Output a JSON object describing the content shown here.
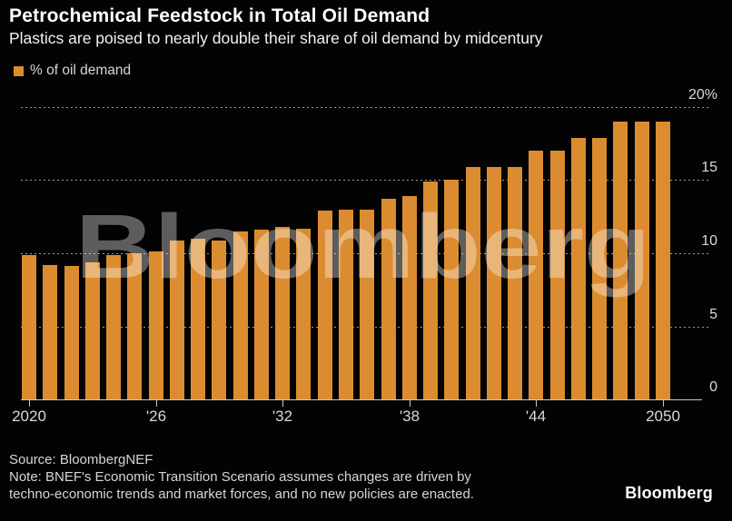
{
  "header": {
    "title": "Petrochemical Feedstock in Total Oil Demand",
    "subtitle": "Plastics are poised to nearly double their share of oil demand by midcentury"
  },
  "legend": {
    "label": "% of oil demand",
    "swatch_color": "#dc8c30"
  },
  "watermark": "Bloomberg",
  "chart_data": {
    "type": "bar",
    "title": "Petrochemical Feedstock in Total Oil Demand",
    "series_name": "% of oil demand",
    "xlabel": "",
    "ylabel": "% of oil demand",
    "ylim": [
      0,
      20
    ],
    "grid": "horizontal-dashed",
    "legend_position": "top-left",
    "bar_color": "#dc8c30",
    "x": [
      2020,
      2021,
      2022,
      2023,
      2024,
      2025,
      2026,
      2027,
      2028,
      2029,
      2030,
      2031,
      2032,
      2033,
      2034,
      2035,
      2036,
      2037,
      2038,
      2039,
      2040,
      2041,
      2042,
      2043,
      2044,
      2045,
      2046,
      2047,
      2048,
      2049,
      2050
    ],
    "values": [
      9.9,
      9.2,
      9.1,
      9.4,
      9.9,
      10.0,
      10.1,
      10.9,
      11.0,
      10.9,
      11.5,
      11.6,
      11.8,
      11.7,
      12.9,
      13.0,
      13.0,
      13.7,
      13.9,
      14.9,
      15.0,
      15.9,
      15.9,
      15.9,
      17.0,
      17.0,
      17.9,
      17.9,
      19.0,
      19.0,
      19.0
    ],
    "yticks": [
      {
        "value": 0,
        "label": "0"
      },
      {
        "value": 5,
        "label": "5"
      },
      {
        "value": 10,
        "label": "10"
      },
      {
        "value": 15,
        "label": "15"
      },
      {
        "value": 20,
        "label": "20%"
      }
    ],
    "xticks": [
      {
        "year": 2020,
        "label": "2020"
      },
      {
        "year": 2026,
        "label": "'26"
      },
      {
        "year": 2032,
        "label": "'32"
      },
      {
        "year": 2038,
        "label": "'38"
      },
      {
        "year": 2044,
        "label": "'44"
      },
      {
        "year": 2050,
        "label": "2050"
      }
    ]
  },
  "footer": {
    "source": "Source: BloombergNEF",
    "note_line1": "Note: BNEF's Economic Transition Scenario assumes changes are driven by",
    "note_line2": "techno-economic trends and market forces, and no new policies are enacted.",
    "logo": "Bloomberg"
  },
  "colors": {
    "background": "#030303",
    "bar": "#dc8c30",
    "title_text": "#ffffff",
    "axis_text": "#d9d9d9",
    "axis_line": "#c9c9c9",
    "gridline": "#9a9a9a",
    "watermark": "rgba(255,255,255,0.36)"
  }
}
